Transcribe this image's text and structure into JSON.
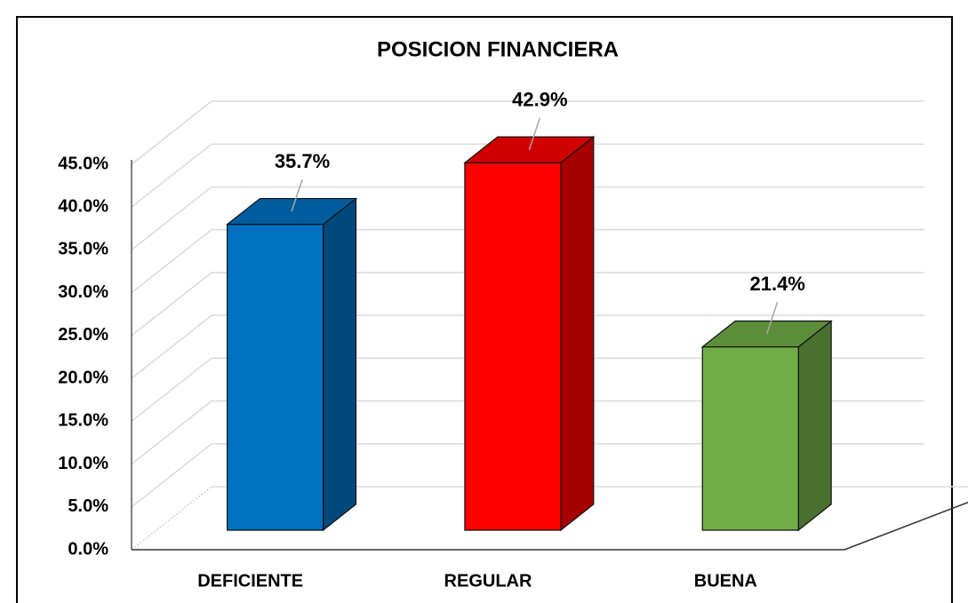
{
  "chart_data": {
    "type": "bar3d",
    "title": "POSICION FINANCIERA",
    "categories": [
      "DEFICIENTE",
      "REGULAR",
      "BUENA"
    ],
    "values": [
      35.7,
      42.9,
      21.4
    ],
    "value_labels": [
      "35.7%",
      "42.9%",
      "21.4%"
    ],
    "colors": [
      "#0070c0",
      "#ff0000",
      "#70ad47"
    ],
    "ylim": [
      0,
      45
    ],
    "yticks": [
      {
        "value": 0,
        "label": "0.0%"
      },
      {
        "value": 5,
        "label": "5.0%"
      },
      {
        "value": 10,
        "label": "10.0%"
      },
      {
        "value": 15,
        "label": "15.0%"
      },
      {
        "value": 20,
        "label": "20.0%"
      },
      {
        "value": 25,
        "label": "25.0%"
      },
      {
        "value": 30,
        "label": "30.0%"
      },
      {
        "value": 35,
        "label": "35.0%"
      },
      {
        "value": 40,
        "label": "40.0%"
      },
      {
        "value": 45,
        "label": "45.0%"
      }
    ],
    "grid": true
  }
}
